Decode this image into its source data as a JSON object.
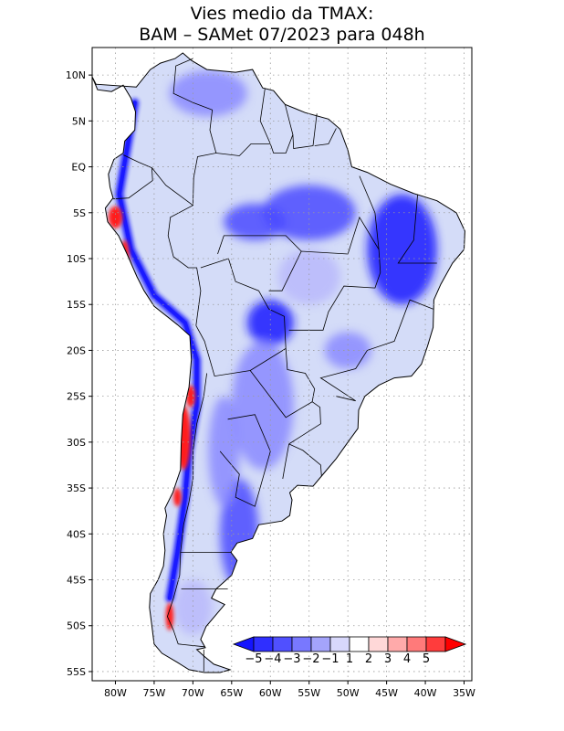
{
  "title": {
    "line1": "Vies medio da TMAX:",
    "line2": "BAM – SAMet 07/2023  para 048h"
  },
  "map": {
    "lon_range": [
      -83,
      -34
    ],
    "lat_range": [
      -56,
      13
    ],
    "lat_ticks": [
      {
        "value": 10,
        "label": "10N"
      },
      {
        "value": 5,
        "label": "5N"
      },
      {
        "value": 0,
        "label": "EQ"
      },
      {
        "value": -5,
        "label": "5S"
      },
      {
        "value": -10,
        "label": "10S"
      },
      {
        "value": -15,
        "label": "15S"
      },
      {
        "value": -20,
        "label": "20S"
      },
      {
        "value": -25,
        "label": "25S"
      },
      {
        "value": -30,
        "label": "30S"
      },
      {
        "value": -35,
        "label": "35S"
      },
      {
        "value": -40,
        "label": "40S"
      },
      {
        "value": -45,
        "label": "45S"
      },
      {
        "value": -50,
        "label": "50S"
      },
      {
        "value": -55,
        "label": "55S"
      }
    ],
    "lon_ticks": [
      {
        "value": -80,
        "label": "80W"
      },
      {
        "value": -75,
        "label": "75W"
      },
      {
        "value": -70,
        "label": "70W"
      },
      {
        "value": -65,
        "label": "65W"
      },
      {
        "value": -60,
        "label": "60W"
      },
      {
        "value": -55,
        "label": "55W"
      },
      {
        "value": -50,
        "label": "50W"
      },
      {
        "value": -45,
        "label": "45W"
      },
      {
        "value": -40,
        "label": "40W"
      },
      {
        "value": -35,
        "label": "35W"
      }
    ],
    "grid": "dotted",
    "colors": {
      "base_land": "#d4dcf8",
      "deep_blue": "#1a1aff",
      "blue": "#4a4aff",
      "mid_blue": "#8a8aff",
      "light_blue": "#b8b8fb",
      "red": "#ff1e1e"
    },
    "bias_regions": [
      {
        "label": "",
        "level": -5,
        "lon": -43,
        "lat": -9,
        "rx": 4.5,
        "ry": 6
      },
      {
        "label": "",
        "level": -5,
        "lon": -60,
        "lat": -17,
        "rx": 3,
        "ry": 2.5
      },
      {
        "label": "",
        "level": -4,
        "lon": -55,
        "lat": -5,
        "rx": 6,
        "ry": 3
      },
      {
        "label": "",
        "level": -4,
        "lon": -62,
        "lat": -6,
        "rx": 4,
        "ry": 2
      },
      {
        "label": "",
        "level": -4,
        "lon": -64,
        "lat": -40,
        "rx": 2.5,
        "ry": 6
      },
      {
        "label": "",
        "level": -3,
        "lon": -61,
        "lat": -26,
        "rx": 4,
        "ry": 7
      },
      {
        "label": "",
        "level": -3,
        "lon": -68,
        "lat": 8,
        "rx": 5,
        "ry": 2.5
      },
      {
        "label": "",
        "level": -3,
        "lon": -66,
        "lat": -31,
        "rx": 2,
        "ry": 6
      },
      {
        "label": "",
        "level": -3,
        "lon": -50,
        "lat": -20,
        "rx": 3,
        "ry": 2
      },
      {
        "label": "",
        "level": -2,
        "lon": -55,
        "lat": -12,
        "rx": 4,
        "ry": 3
      },
      {
        "label": "",
        "level": -2,
        "lon": -70,
        "lat": -48,
        "rx": 2.5,
        "ry": 3
      }
    ],
    "andes_band": [
      {
        "lon": -77.5,
        "lat": 7
      },
      {
        "lon": -78.5,
        "lat": 2
      },
      {
        "lon": -79.5,
        "lat": -3
      },
      {
        "lon": -78,
        "lat": -9
      },
      {
        "lon": -75,
        "lat": -14
      },
      {
        "lon": -71,
        "lat": -17
      },
      {
        "lon": -69.5,
        "lat": -21
      },
      {
        "lon": -69.5,
        "lat": -26
      },
      {
        "lon": -70.5,
        "lat": -31
      },
      {
        "lon": -71,
        "lat": -36
      },
      {
        "lon": -72,
        "lat": -42
      },
      {
        "lon": -73,
        "lat": -47
      }
    ],
    "warm_spots": [
      {
        "label": "",
        "lon": -80,
        "lat": -5.5,
        "rx": 0.9,
        "ry": 1.2
      },
      {
        "label": "",
        "lon": -78.8,
        "lat": -10,
        "rx": 0.6,
        "ry": 2
      },
      {
        "label": "",
        "lon": -71.2,
        "lat": -29.5,
        "rx": 0.9,
        "ry": 3.5
      },
      {
        "label": "",
        "lon": -70.3,
        "lat": -25,
        "rx": 0.6,
        "ry": 1.2
      },
      {
        "label": "",
        "lon": -73,
        "lat": -49,
        "rx": 0.5,
        "ry": 1.5
      },
      {
        "label": "",
        "lon": -72,
        "lat": -36,
        "rx": 0.5,
        "ry": 1
      }
    ]
  },
  "colorbar": {
    "labels": [
      "−5",
      "−4",
      "−3",
      "−2",
      "−1",
      "1",
      "2",
      "3",
      "4",
      "5"
    ],
    "colors": [
      "#1414ff",
      "#2f2fff",
      "#5050ff",
      "#7878ff",
      "#a4a4fb",
      "#d8d8fb",
      "#ffffff",
      "#ffd8d8",
      "#ffaaaa",
      "#ff7a7a",
      "#ff3c3c",
      "#ff0000"
    ]
  }
}
